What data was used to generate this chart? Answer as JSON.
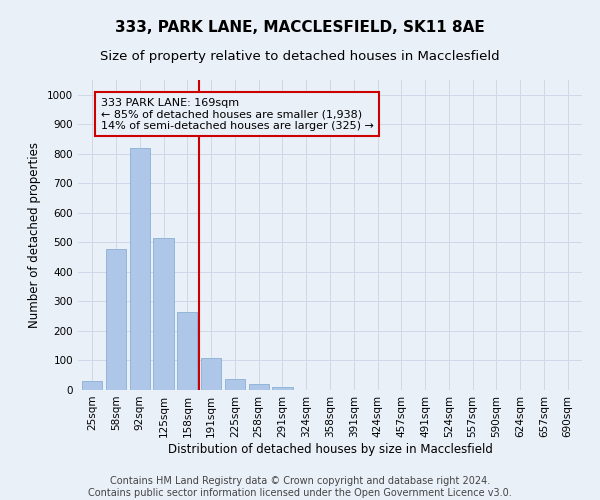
{
  "title": "333, PARK LANE, MACCLESFIELD, SK11 8AE",
  "subtitle": "Size of property relative to detached houses in Macclesfield",
  "xlabel": "Distribution of detached houses by size in Macclesfield",
  "ylabel": "Number of detached properties",
  "footer_line1": "Contains HM Land Registry data © Crown copyright and database right 2024.",
  "footer_line2": "Contains public sector information licensed under the Open Government Licence v3.0.",
  "categories": [
    "25sqm",
    "58sqm",
    "92sqm",
    "125sqm",
    "158sqm",
    "191sqm",
    "225sqm",
    "258sqm",
    "291sqm",
    "324sqm",
    "358sqm",
    "391sqm",
    "424sqm",
    "457sqm",
    "491sqm",
    "524sqm",
    "557sqm",
    "590sqm",
    "624sqm",
    "657sqm",
    "690sqm"
  ],
  "values": [
    30,
    478,
    820,
    515,
    265,
    110,
    38,
    22,
    10,
    0,
    0,
    0,
    0,
    0,
    0,
    0,
    0,
    0,
    0,
    0,
    0
  ],
  "bar_color": "#aec6e8",
  "bar_edge_color": "#8ab0d4",
  "bar_width": 0.85,
  "vline_x": 4.5,
  "vline_color": "#cc0000",
  "annotation_box_text": "333 PARK LANE: 169sqm\n← 85% of detached houses are smaller (1,938)\n14% of semi-detached houses are larger (325) →",
  "box_edge_color": "#cc0000",
  "ylim": [
    0,
    1050
  ],
  "yticks": [
    0,
    100,
    200,
    300,
    400,
    500,
    600,
    700,
    800,
    900,
    1000
  ],
  "grid_color": "#d0d8e8",
  "bg_color": "#eaf0f8",
  "title_fontsize": 11,
  "subtitle_fontsize": 9.5,
  "axis_label_fontsize": 8.5,
  "tick_fontsize": 7.5,
  "footer_fontsize": 7,
  "ann_fontsize": 8
}
